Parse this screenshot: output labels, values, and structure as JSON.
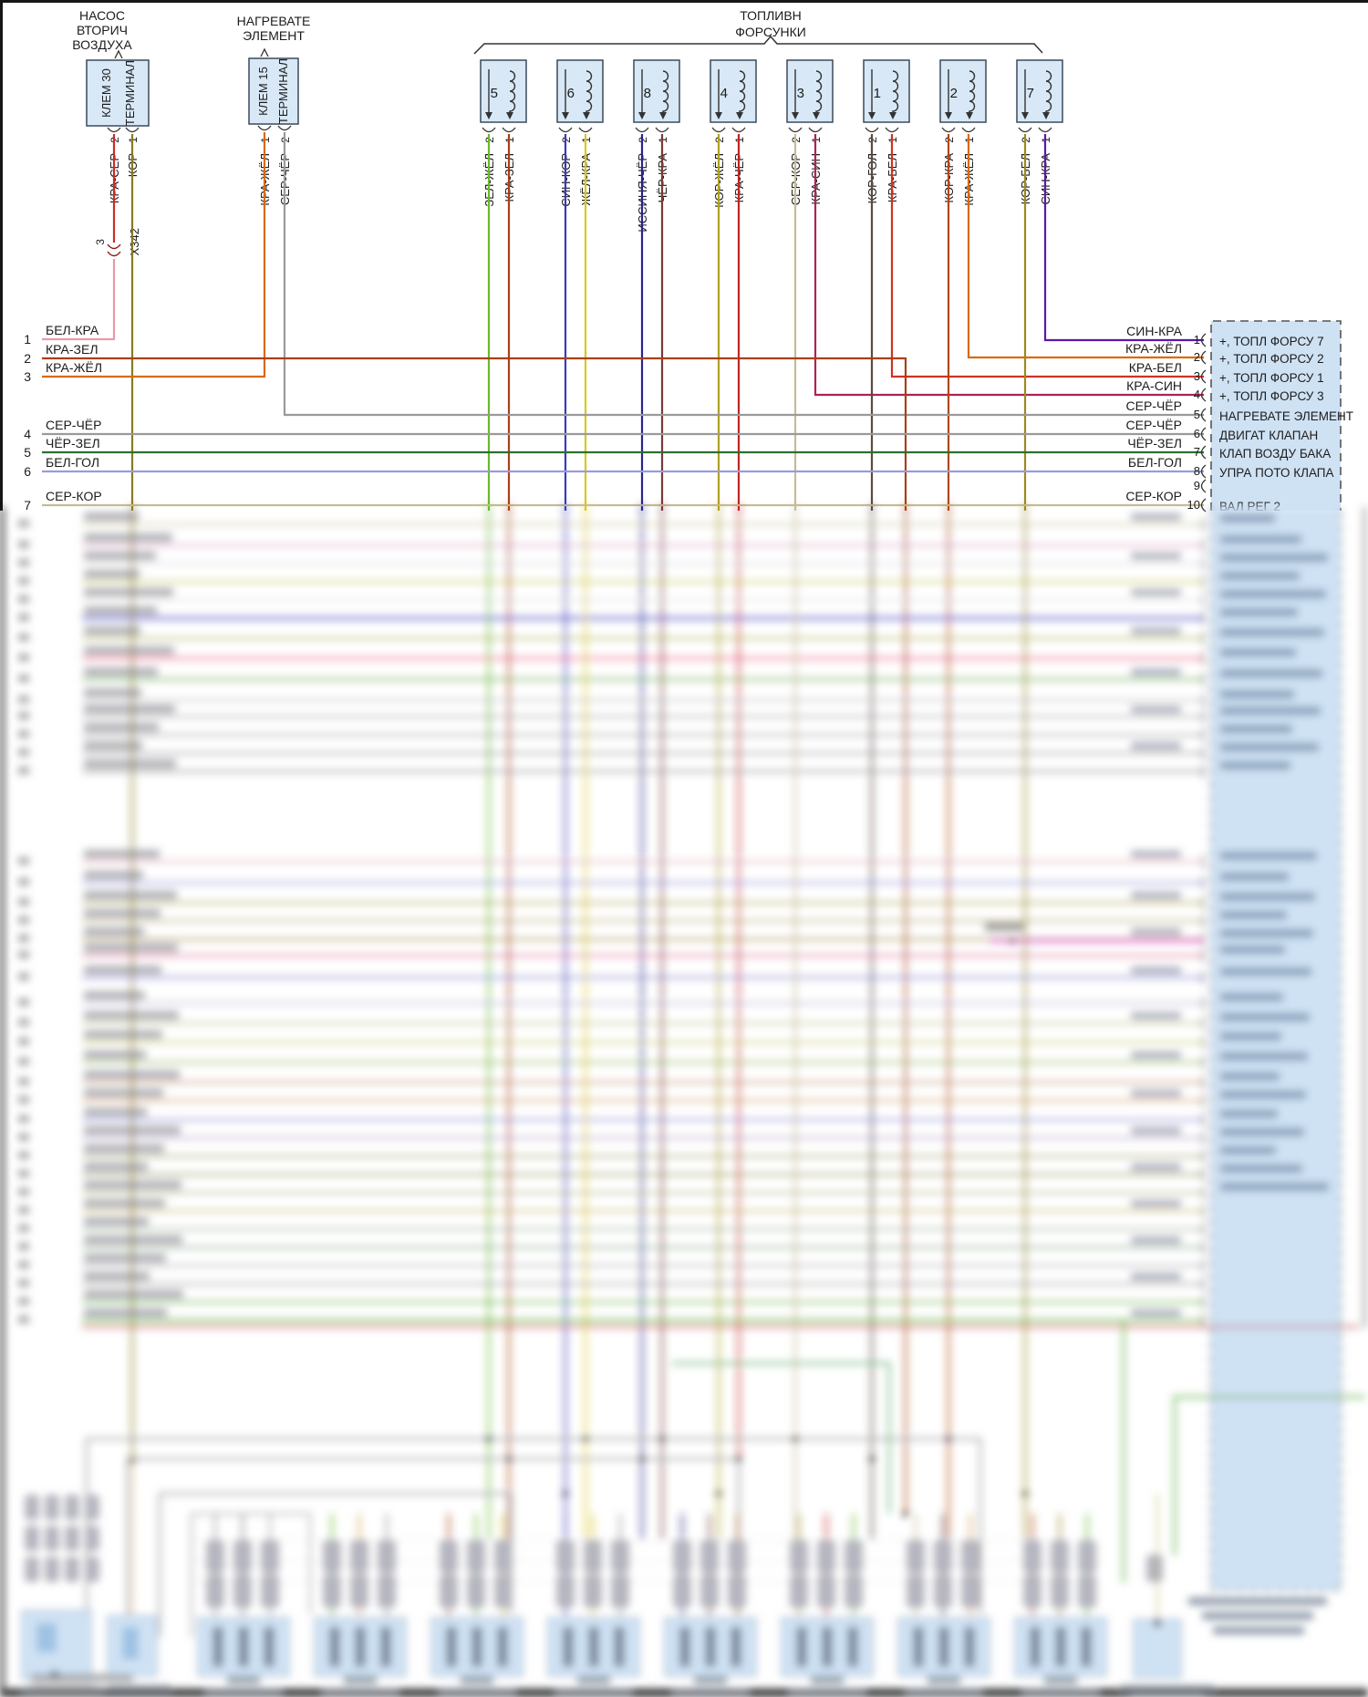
{
  "diagram": {
    "pump": {
      "lines": [
        "НАСОС",
        "ВТОРИЧ",
        "ВОЗДУХА"
      ],
      "terminal_col1": "КЛЕМ 30",
      "terminal_col2": "ТЕРМИНАЛ",
      "pin_left_num": "2",
      "pin_left_wire": "КРА-СЕР",
      "pin_right_num": "1",
      "pin_right_wire": "КОР"
    },
    "splice": {
      "pin": "3",
      "name": "X342"
    },
    "heater": {
      "lines": [
        "НАГРЕВАТЕ",
        "ЭЛЕМЕНТ"
      ],
      "terminal_col1": "КЛЕМ 15",
      "terminal_col2": "ТЕРМИНАЛ",
      "pin_left_num": "1",
      "pin_left_wire": "КРА-ЖЁЛ",
      "pin_right_num": "2",
      "pin_right_wire": "СЕР-ЧЁР"
    },
    "injectors_title": [
      "ТОПЛИВН",
      "ФОРСУНКИ"
    ],
    "injector_pin2_num": "2",
    "injector_pin1_num": "1",
    "injectors": [
      {
        "number": "5",
        "pin2": "ЗЕЛ-ЖЁЛ",
        "pin1": "КРА-ЗЕЛ"
      },
      {
        "number": "6",
        "pin2": "СИН-КОР",
        "pin1": "ЖЁЛ-КРА"
      },
      {
        "number": "8",
        "pin2": "ИССИНЯ-ЧЁР",
        "pin1": "ЧЁР-КРА"
      },
      {
        "number": "4",
        "pin2": "КОР-ЖЁЛ",
        "pin1": "КРА-ЧЁР"
      },
      {
        "number": "3",
        "pin2": "СЕР-КОР",
        "pin1": "КРА-СИН"
      },
      {
        "number": "1",
        "pin2": "КОР-ГОЛ",
        "pin1": "КРА-БЕЛ"
      },
      {
        "number": "2",
        "pin2": "КОР-КРА",
        "pin1": "КРА-ЖЁЛ"
      },
      {
        "number": "7",
        "pin2": "КОР-БЕЛ",
        "pin1": "СИН-КРА"
      }
    ],
    "left_rows": [
      {
        "num": "1",
        "label": "БЕЛ-КРА"
      },
      {
        "num": "2",
        "label": "КРА-ЗЕЛ"
      },
      {
        "num": "3",
        "label": "КРА-ЖЁЛ"
      },
      {
        "num": "4",
        "label": "СЕР-ЧЁР"
      },
      {
        "num": "5",
        "label": "ЧЁР-ЗЕЛ"
      },
      {
        "num": "6",
        "label": "БЕЛ-ГОЛ"
      },
      {
        "num": "7",
        "label": "СЕР-КОР"
      }
    ],
    "right_rows": [
      {
        "num": "1",
        "label": "СИН-КРА",
        "ecu": "+, ТОПЛ ФОРСУ 7"
      },
      {
        "num": "2",
        "label": "КРА-ЖЁЛ",
        "ecu": "+, ТОПЛ ФОРСУ 2"
      },
      {
        "num": "3",
        "label": "КРА-БЕЛ",
        "ecu": "+, ТОПЛ ФОРСУ 1"
      },
      {
        "num": "4",
        "label": "КРА-СИН",
        "ecu": "+, ТОПЛ ФОРСУ 3"
      },
      {
        "num": "5",
        "label": "СЕР-ЧЁР",
        "ecu": "НАГРЕВАТЕ ЭЛЕМЕНТ"
      },
      {
        "num": "6",
        "label": "СЕР-ЧЁР",
        "ecu": "ДВИГАТ КЛАПАН"
      },
      {
        "num": "7",
        "label": "ЧЁР-ЗЕЛ",
        "ecu": "КЛАП ВОЗДУ БАКА"
      },
      {
        "num": "8",
        "label": "БЕЛ-ГОЛ",
        "ecu": "УПРА ПОТО КЛАПА"
      },
      {
        "num": "9",
        "label": "",
        "ecu": ""
      },
      {
        "num": "10",
        "label": "СЕР-КОР",
        "ecu": "ВАЛ РЕГ 2"
      }
    ],
    "wire_colors": {
      "КРА-СЕР": "#cc2a2a",
      "КОР": "#8a7a1f",
      "БЕЛ-КРА": "#e89aa8",
      "КРА-ЗЕЛ": "#a84018",
      "КРА-ЖЁЛ": "#d86a10",
      "СЕР-ЧЁР": "#9a9a9a",
      "ЗЕЛ-ЖЁЛ": "#6ab82c",
      "СИН-КОР": "#3a3ab8",
      "ЖЁЛ-КРА": "#d8c820",
      "ИССИНЯ-ЧЁР": "#26268c",
      "ЧЁР-КРА": "#7a3a34",
      "КОР-ЖЁЛ": "#b0a020",
      "КРА-ЧЁР": "#c22424",
      "СЕР-КОР": "#c6bc96",
      "КРА-СИН": "#b0205a",
      "КОР-ГОЛ": "#5a4a42",
      "КРА-БЕЛ": "#cc3322",
      "КОР-КРА": "#b04818",
      "КОР-БЕЛ": "#9a8a20",
      "СИН-КРА": "#5b18a8",
      "ЧЁР-ЗЕЛ": "#2f6f2f",
      "БЕЛ-ГОЛ": "#9a9ade"
    },
    "ecu_box_fill": "#cfe2f4",
    "connector_box_fill": "#d8e8f6"
  }
}
